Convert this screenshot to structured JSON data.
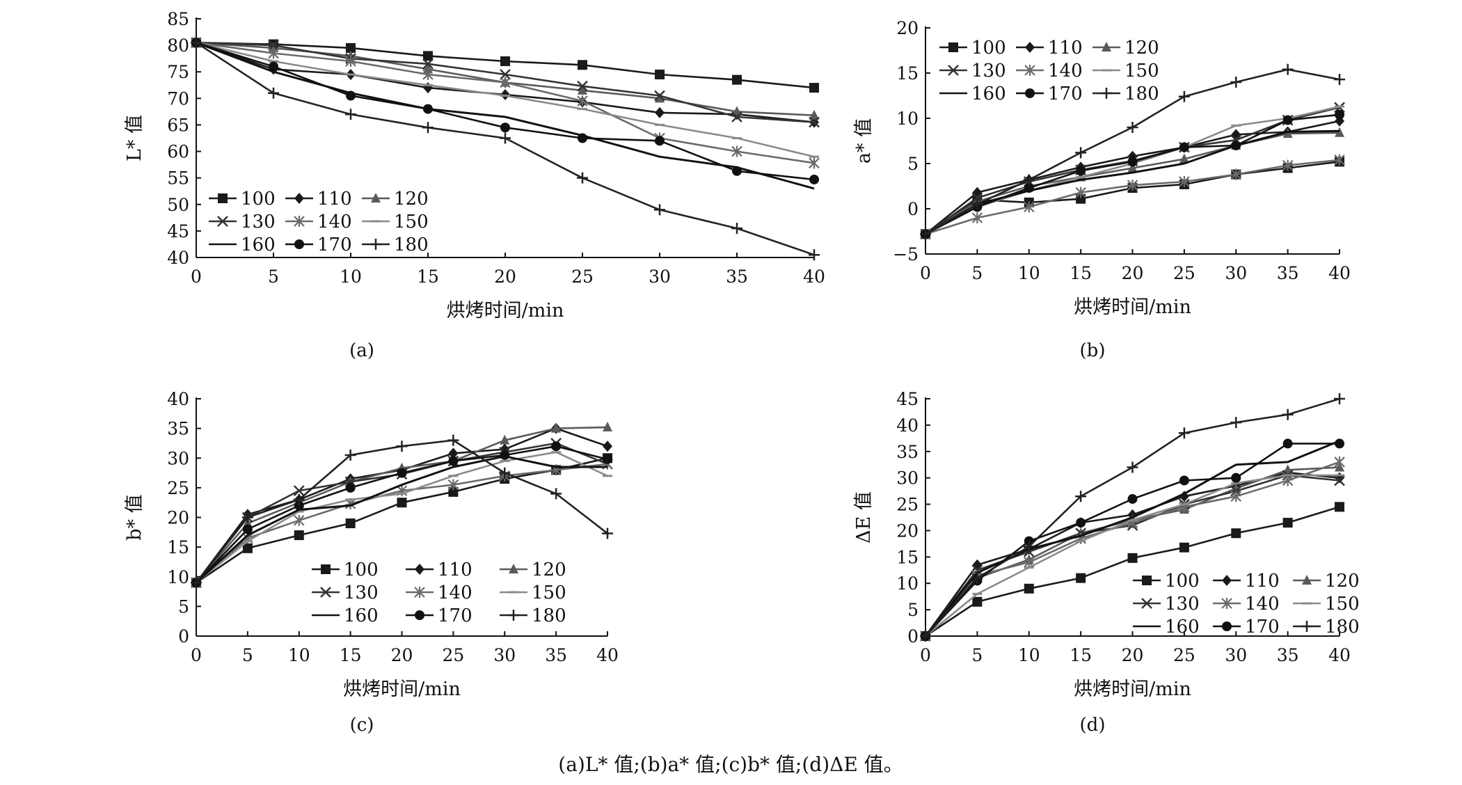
{
  "caption": "(a)L* 值;(b)a* 值;(c)b* 值;(d)ΔE 值。",
  "colors": {
    "s100": "#1a1a1a",
    "s110": "#1a1a1a",
    "s120": "#5a5a5a",
    "s130": "#333333",
    "s140": "#6a6a6a",
    "s150": "#8a8a8a",
    "s160": "#111111",
    "s170": "#111111",
    "s180": "#222222"
  },
  "chart_data": [
    {
      "type": "line",
      "panel": "(a)",
      "ylabel": "L* 值",
      "xlabel": "烘烤时间/min",
      "x": [
        0,
        5,
        10,
        15,
        20,
        25,
        30,
        35,
        40
      ],
      "xlim": [
        0,
        40
      ],
      "ylim": [
        40,
        85
      ],
      "yticks": [
        40,
        45,
        50,
        55,
        60,
        65,
        70,
        75,
        80,
        85
      ],
      "legend_position": "bottom-left",
      "legend_cols": 3,
      "series": [
        {
          "name": "100",
          "marker": "square",
          "values": [
            80.5,
            80.2,
            79.5,
            78.0,
            77.0,
            76.3,
            74.5,
            73.5,
            72.0
          ]
        },
        {
          "name": "110",
          "marker": "diamond",
          "values": [
            80.5,
            75.5,
            74.5,
            72.0,
            70.7,
            69.3,
            67.3,
            67.0,
            65.5
          ]
        },
        {
          "name": "120",
          "marker": "triangle",
          "values": [
            80.5,
            79.5,
            78.0,
            75.5,
            73.0,
            71.5,
            70.0,
            67.5,
            66.8
          ]
        },
        {
          "name": "130",
          "marker": "x",
          "values": [
            80.5,
            80.0,
            77.5,
            76.5,
            74.5,
            72.3,
            70.5,
            66.5,
            65.5
          ]
        },
        {
          "name": "140",
          "marker": "asterisk",
          "values": [
            80.5,
            78.5,
            77.0,
            74.5,
            73.0,
            69.5,
            62.5,
            60.0,
            57.8
          ]
        },
        {
          "name": "150",
          "marker": "dash",
          "values": [
            80.5,
            77.0,
            74.5,
            72.5,
            70.5,
            68.0,
            65.0,
            62.5,
            59.0
          ]
        },
        {
          "name": "160",
          "marker": "none",
          "values": [
            80.5,
            75.0,
            71.0,
            68.0,
            66.5,
            63.0,
            59.0,
            57.0,
            53.0
          ]
        },
        {
          "name": "170",
          "marker": "circle",
          "values": [
            80.5,
            76.0,
            70.5,
            68.0,
            64.5,
            62.5,
            62.0,
            56.3,
            54.7
          ]
        },
        {
          "name": "180",
          "marker": "plus",
          "values": [
            80.5,
            71.0,
            67.0,
            64.5,
            62.5,
            55.0,
            49.0,
            45.5,
            40.5
          ]
        }
      ]
    },
    {
      "type": "line",
      "panel": "(b)",
      "ylabel": "a* 值",
      "xlabel": "烘烤时间/min",
      "x": [
        0,
        5,
        10,
        15,
        20,
        25,
        30,
        35,
        40
      ],
      "xlim": [
        0,
        40
      ],
      "ylim": [
        -5,
        20
      ],
      "yticks": [
        -5,
        0,
        5,
        10,
        15,
        20
      ],
      "legend_position": "top-left",
      "legend_cols": 3,
      "series": [
        {
          "name": "100",
          "marker": "square",
          "values": [
            -2.8,
            1.0,
            0.7,
            1.1,
            2.3,
            2.7,
            3.8,
            4.5,
            5.2
          ]
        },
        {
          "name": "110",
          "marker": "diamond",
          "values": [
            -2.8,
            1.8,
            3.2,
            4.6,
            5.8,
            6.8,
            8.2,
            8.5,
            9.7
          ]
        },
        {
          "name": "120",
          "marker": "triangle",
          "values": [
            -2.8,
            0.8,
            2.5,
            3.5,
            4.5,
            5.5,
            7.0,
            8.3,
            8.4
          ]
        },
        {
          "name": "130",
          "marker": "x",
          "values": [
            -2.8,
            1.2,
            3.0,
            4.3,
            5.3,
            6.8,
            7.6,
            9.8,
            11.2
          ]
        },
        {
          "name": "140",
          "marker": "asterisk",
          "values": [
            -2.8,
            -1.0,
            0.2,
            1.8,
            2.6,
            3.0,
            3.8,
            4.8,
            5.4
          ]
        },
        {
          "name": "150",
          "marker": "dash",
          "values": [
            -2.8,
            0.2,
            2.0,
            3.5,
            5.0,
            6.8,
            9.2,
            10.0,
            11.3
          ]
        },
        {
          "name": "160",
          "marker": "none",
          "values": [
            -2.8,
            0.5,
            2.0,
            3.2,
            4.0,
            5.0,
            7.0,
            8.5,
            8.6
          ]
        },
        {
          "name": "170",
          "marker": "circle",
          "values": [
            -2.8,
            0.2,
            2.3,
            4.2,
            5.2,
            6.8,
            7.0,
            9.8,
            10.4
          ]
        },
        {
          "name": "180",
          "marker": "plus",
          "values": [
            -2.8,
            0.5,
            3.2,
            6.2,
            9.0,
            12.4,
            14.0,
            15.4,
            14.3
          ]
        }
      ]
    },
    {
      "type": "line",
      "panel": "(c)",
      "ylabel": "b* 值",
      "xlabel": "烘烤时间/min",
      "x": [
        0,
        5,
        10,
        15,
        20,
        25,
        30,
        35,
        40
      ],
      "xlim": [
        0,
        40
      ],
      "ylim": [
        0,
        40
      ],
      "yticks": [
        0,
        5,
        10,
        15,
        20,
        25,
        30,
        35,
        40
      ],
      "legend_position": "bottom-right",
      "legend_cols": 3,
      "series": [
        {
          "name": "100",
          "marker": "square",
          "values": [
            9.0,
            14.8,
            17.0,
            19.0,
            22.5,
            24.3,
            26.5,
            28.0,
            30.0
          ]
        },
        {
          "name": "110",
          "marker": "diamond",
          "values": [
            9.0,
            20.5,
            23.0,
            26.5,
            28.0,
            30.8,
            31.5,
            35.0,
            32.0
          ]
        },
        {
          "name": "120",
          "marker": "triangle",
          "values": [
            9.0,
            19.0,
            22.5,
            26.0,
            28.3,
            29.5,
            33.0,
            35.0,
            35.2
          ]
        },
        {
          "name": "130",
          "marker": "x",
          "values": [
            9.0,
            20.0,
            24.5,
            26.0,
            27.3,
            29.5,
            31.0,
            32.5,
            29.0
          ]
        },
        {
          "name": "140",
          "marker": "asterisk",
          "values": [
            9.0,
            16.5,
            19.5,
            22.3,
            24.5,
            25.5,
            27.0,
            28.0,
            29.0
          ]
        },
        {
          "name": "150",
          "marker": "dash",
          "values": [
            9.0,
            16.0,
            21.0,
            23.0,
            24.0,
            27.0,
            29.5,
            31.0,
            27.0
          ]
        },
        {
          "name": "160",
          "marker": "none",
          "values": [
            9.0,
            17.0,
            21.3,
            22.0,
            25.5,
            28.5,
            30.3,
            28.5,
            28.5
          ]
        },
        {
          "name": "170",
          "marker": "circle",
          "values": [
            9.0,
            18.0,
            22.0,
            25.0,
            27.5,
            29.5,
            30.5,
            32.0,
            29.8
          ]
        },
        {
          "name": "180",
          "marker": "plus",
          "values": [
            9.0,
            20.0,
            23.0,
            30.5,
            32.0,
            33.0,
            27.5,
            24.0,
            17.3
          ]
        }
      ]
    },
    {
      "type": "line",
      "panel": "(d)",
      "ylabel": "ΔE 值",
      "xlabel": "烘烤时间/min",
      "x": [
        0,
        5,
        10,
        15,
        20,
        25,
        30,
        35,
        40
      ],
      "xlim": [
        0,
        40
      ],
      "ylim": [
        0,
        45
      ],
      "yticks": [
        0,
        5,
        10,
        15,
        20,
        25,
        30,
        35,
        40,
        45
      ],
      "legend_position": "bottom-right",
      "legend_cols": 3,
      "series": [
        {
          "name": "100",
          "marker": "square",
          "values": [
            0,
            6.5,
            9.0,
            11.0,
            14.8,
            16.8,
            19.5,
            21.5,
            24.5
          ]
        },
        {
          "name": "110",
          "marker": "diamond",
          "values": [
            0,
            13.5,
            16.5,
            21.5,
            23.0,
            26.5,
            28.5,
            31.0,
            30.0
          ]
        },
        {
          "name": "120",
          "marker": "triangle",
          "values": [
            0,
            11.0,
            14.5,
            19.5,
            22.0,
            24.0,
            28.0,
            31.5,
            32.0
          ]
        },
        {
          "name": "130",
          "marker": "x",
          "values": [
            0,
            12.5,
            16.0,
            19.5,
            21.0,
            25.0,
            27.5,
            30.5,
            29.5
          ]
        },
        {
          "name": "140",
          "marker": "asterisk",
          "values": [
            0,
            11.5,
            14.0,
            18.5,
            21.5,
            24.5,
            26.5,
            29.5,
            33.0
          ]
        },
        {
          "name": "150",
          "marker": "dash",
          "values": [
            0,
            8.0,
            13.0,
            18.0,
            22.0,
            25.0,
            29.0,
            30.5,
            30.5
          ]
        },
        {
          "name": "160",
          "marker": "none",
          "values": [
            0,
            12.0,
            16.5,
            19.0,
            22.5,
            27.0,
            32.5,
            33.0,
            37.0
          ]
        },
        {
          "name": "170",
          "marker": "circle",
          "values": [
            0,
            10.5,
            18.0,
            21.5,
            26.0,
            29.5,
            30.0,
            36.5,
            36.5
          ]
        },
        {
          "name": "180",
          "marker": "plus",
          "values": [
            0,
            11.0,
            17.0,
            26.5,
            32.0,
            38.5,
            40.5,
            42.0,
            45.0
          ]
        }
      ]
    }
  ],
  "panel_labels": [
    "(a)",
    "(b)",
    "(c)",
    "(d)"
  ]
}
